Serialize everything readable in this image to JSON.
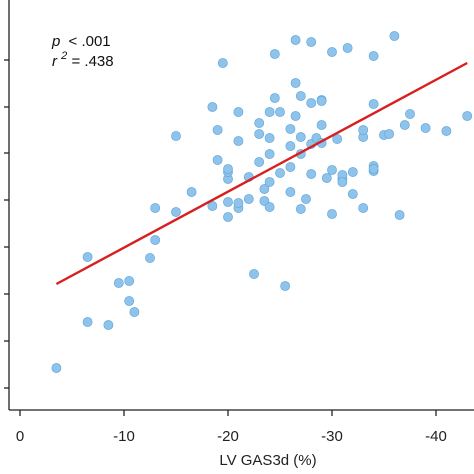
{
  "chart_data": {
    "type": "scatter",
    "xlabel": "LV GAS3d (%)",
    "ylabel": "",
    "title": "",
    "x_reversed": true,
    "xlim": [
      1,
      -43
    ],
    "ylim": [
      0,
      380
    ],
    "xticks": [
      0,
      -10,
      -20,
      -30,
      -40
    ],
    "xtick_labels": [
      "0",
      "-10",
      "-20",
      "-30",
      "-40"
    ],
    "yticks": [
      22,
      69,
      116,
      163,
      210,
      257,
      303,
      350
    ],
    "ytick_labels": [],
    "annotation": {
      "p_symbol": "p",
      "p_text": "< .001",
      "r_symbol": "r",
      "r_exp": "2",
      "r_text": " = .438"
    },
    "series": [
      {
        "marker_color": "#8fc3ea",
        "points": [
          [
            -3.5,
            42
          ],
          [
            -6.5,
            153
          ],
          [
            -6.5,
            88
          ],
          [
            -8.5,
            85
          ],
          [
            -9.5,
            127
          ],
          [
            -10.5,
            129
          ],
          [
            -10.5,
            109
          ],
          [
            -11,
            98
          ],
          [
            -12.5,
            152
          ],
          [
            -13,
            170
          ],
          [
            -13,
            202
          ],
          [
            -15,
            198
          ],
          [
            -15,
            274
          ],
          [
            -16.5,
            218
          ],
          [
            -18.5,
            204
          ],
          [
            -19,
            250
          ],
          [
            -19,
            280
          ],
          [
            -18.5,
            303
          ],
          [
            -19.5,
            347
          ],
          [
            -20,
            193
          ],
          [
            -20,
            208
          ],
          [
            -20,
            231
          ],
          [
            -20,
            238
          ],
          [
            -20,
            241
          ],
          [
            -21,
            298
          ],
          [
            -21,
            269
          ],
          [
            -21,
            202
          ],
          [
            -21,
            207
          ],
          [
            -22,
            211
          ],
          [
            -22,
            233
          ],
          [
            -22.5,
            136
          ],
          [
            -23,
            248
          ],
          [
            -23,
            276
          ],
          [
            -23,
            287
          ],
          [
            -23.5,
            209
          ],
          [
            -23.5,
            221
          ],
          [
            -24,
            203
          ],
          [
            -24,
            228
          ],
          [
            -24,
            256
          ],
          [
            -24,
            272
          ],
          [
            -24,
            298
          ],
          [
            -24.5,
            312
          ],
          [
            -24.5,
            356
          ],
          [
            -25,
            298
          ],
          [
            -25,
            237
          ],
          [
            -25.5,
            124
          ],
          [
            -26,
            218
          ],
          [
            -26,
            243
          ],
          [
            -26,
            264
          ],
          [
            -26,
            281
          ],
          [
            -26.5,
            294
          ],
          [
            -26.5,
            327
          ],
          [
            -26.5,
            370
          ],
          [
            -27,
            201
          ],
          [
            -27,
            256
          ],
          [
            -27,
            273
          ],
          [
            -27,
            314
          ],
          [
            -27.5,
            211
          ],
          [
            -28,
            236
          ],
          [
            -28,
            266
          ],
          [
            -28,
            307
          ],
          [
            -28,
            368
          ],
          [
            -28.5,
            272
          ],
          [
            -29,
            267
          ],
          [
            -29,
            285
          ],
          [
            -29,
            310
          ],
          [
            -29,
            309
          ],
          [
            -29.5,
            232
          ],
          [
            -30,
            196
          ],
          [
            -30,
            240
          ],
          [
            -30,
            358
          ],
          [
            -30.5,
            271
          ],
          [
            -31,
            231
          ],
          [
            -31,
            235
          ],
          [
            -31,
            228
          ],
          [
            -31.5,
            362
          ],
          [
            -32,
            238
          ],
          [
            -32,
            216
          ],
          [
            -33,
            202
          ],
          [
            -33,
            273
          ],
          [
            -33,
            280
          ],
          [
            -34,
            244
          ],
          [
            -34,
            239
          ],
          [
            -34,
            306
          ],
          [
            -34,
            354
          ],
          [
            -34,
            241
          ],
          [
            -35,
            275
          ],
          [
            -35.5,
            276
          ],
          [
            -36,
            374
          ],
          [
            -36.5,
            195
          ],
          [
            -37,
            285
          ],
          [
            -37.5,
            296
          ],
          [
            -39,
            282
          ],
          [
            -41,
            279
          ],
          [
            -43,
            294
          ]
        ]
      }
    ],
    "fit_line": {
      "color": "#d81f1f",
      "x": [
        -3.5,
        -43
      ],
      "y": [
        126,
        347
      ]
    }
  }
}
